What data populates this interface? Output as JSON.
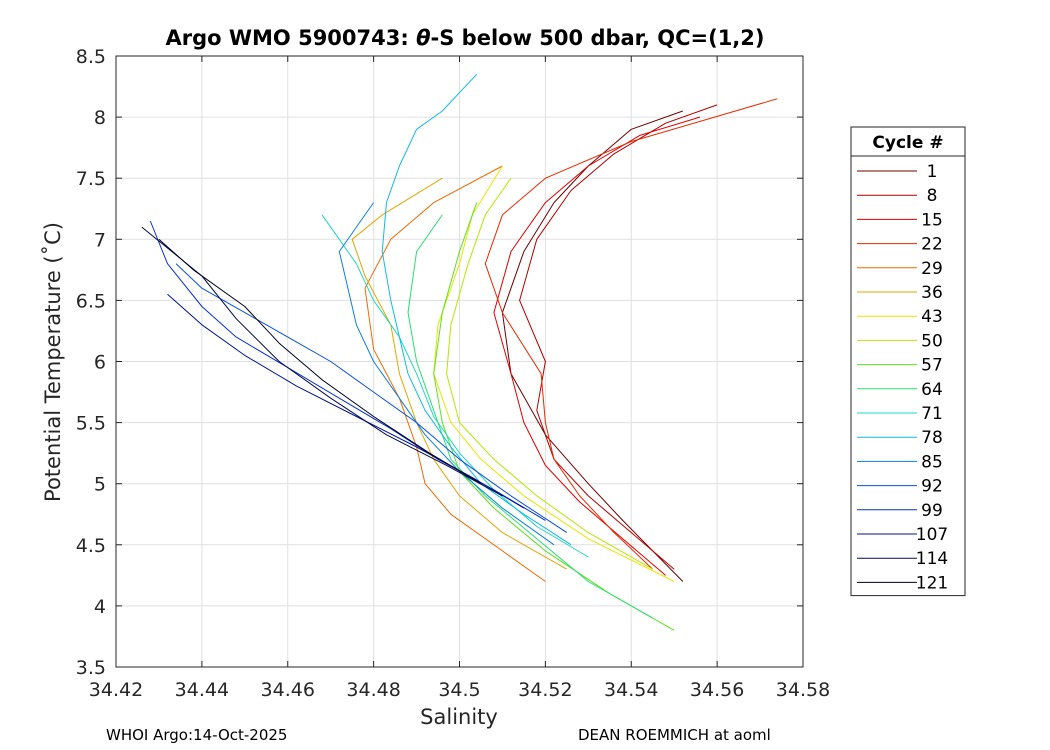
{
  "title": {
    "prefix": "Argo WMO 5900743: ",
    "theta": "θ",
    "suffix": "-S below 500 dbar,  QC=(1,2)"
  },
  "footer": {
    "left": "WHOI Argo:14-Oct-2025",
    "right": "DEAN ROEMMICH at aoml"
  },
  "colors": {
    "axis": "#262626",
    "grid": "#e0e0e0",
    "cycle_palette": [
      "#6e0000",
      "#b00000",
      "#e00000",
      "#e62a00",
      "#ec6a00",
      "#e2a600",
      "#e8e600",
      "#b4e600",
      "#5ee020",
      "#26e070",
      "#1fd8c0",
      "#12b8ea",
      "#0d7ee0",
      "#0a52d4",
      "#0832c8",
      "#04148c",
      "#050a50",
      "#000022"
    ]
  },
  "chart_data": {
    "type": "line",
    "title": "Argo WMO 5900743: θ-S below 500 dbar,  QC=(1,2)",
    "xlabel": "Salinity",
    "ylabel": "Potential Temperature (˚C)",
    "xlim": [
      34.42,
      34.58
    ],
    "ylim": [
      3.5,
      8.5
    ],
    "xticks": [
      34.42,
      34.44,
      34.46,
      34.48,
      34.5,
      34.52,
      34.54,
      34.56,
      34.58
    ],
    "xtick_labels": [
      "34.42",
      "34.44",
      "34.46",
      "34.48",
      "34.5",
      "34.52",
      "34.54",
      "34.56",
      "34.58"
    ],
    "yticks": [
      3.5,
      4,
      4.5,
      5,
      5.5,
      6,
      6.5,
      7,
      7.5,
      8,
      8.5
    ],
    "ytick_labels": [
      "3.5",
      "4",
      "4.5",
      "5",
      "5.5",
      "6",
      "6.5",
      "7",
      "7.5",
      "8",
      "8.5"
    ],
    "grid": true,
    "legend": {
      "title": "Cycle #",
      "position": "outside-right",
      "entries": [
        "1",
        "8",
        "15",
        "22",
        "29",
        "36",
        "43",
        "50",
        "57",
        "64",
        "71",
        "78",
        "85",
        "92",
        "99",
        "107",
        "114",
        "121"
      ]
    },
    "series": [
      {
        "name": "1",
        "x": [
          34.552,
          34.545,
          34.538,
          34.53,
          34.52,
          34.512,
          34.51,
          34.515,
          34.522,
          34.53,
          34.54,
          34.552
        ],
        "y": [
          4.2,
          4.45,
          4.7,
          5.0,
          5.4,
          5.9,
          6.4,
          6.9,
          7.3,
          7.6,
          7.9,
          8.05
        ]
      },
      {
        "name": "8",
        "x": [
          34.55,
          34.54,
          34.53,
          34.522,
          34.518,
          34.52,
          34.514,
          34.518,
          34.526,
          34.536,
          34.548,
          34.56
        ],
        "y": [
          4.3,
          4.6,
          4.9,
          5.2,
          5.6,
          6.0,
          6.5,
          7.0,
          7.4,
          7.7,
          7.95,
          8.1
        ]
      },
      {
        "name": "15",
        "x": [
          34.548,
          34.538,
          34.528,
          34.52,
          34.515,
          34.512,
          34.508,
          34.512,
          34.52,
          34.53,
          34.542,
          34.556
        ],
        "y": [
          4.25,
          4.55,
          4.85,
          5.15,
          5.5,
          5.9,
          6.4,
          6.9,
          7.3,
          7.6,
          7.85,
          8.0
        ]
      },
      {
        "name": "22",
        "x": [
          34.545,
          34.536,
          34.528,
          34.522,
          34.52,
          34.519,
          34.51,
          34.506,
          34.51,
          34.52,
          34.54,
          34.574
        ],
        "y": [
          4.3,
          4.6,
          4.9,
          5.2,
          5.5,
          5.9,
          6.4,
          6.8,
          7.2,
          7.5,
          7.8,
          8.15
        ]
      },
      {
        "name": "29",
        "x": [
          34.52,
          34.51,
          34.498,
          34.492,
          34.49,
          34.486,
          34.48,
          34.478,
          34.484,
          34.494,
          34.51
        ],
        "y": [
          4.2,
          4.45,
          4.75,
          5.0,
          5.3,
          5.7,
          6.1,
          6.6,
          7.0,
          7.3,
          7.6
        ]
      },
      {
        "name": "36",
        "x": [
          34.525,
          34.51,
          34.5,
          34.494,
          34.49,
          34.486,
          34.484,
          34.478,
          34.475,
          34.482,
          34.496
        ],
        "y": [
          4.3,
          4.6,
          4.9,
          5.2,
          5.5,
          5.9,
          6.3,
          6.7,
          7.0,
          7.2,
          7.5
        ]
      },
      {
        "name": "43",
        "x": [
          34.55,
          34.53,
          34.515,
          34.505,
          34.498,
          34.494,
          34.495,
          34.5,
          34.503,
          34.51
        ],
        "y": [
          4.2,
          4.55,
          4.9,
          5.2,
          5.5,
          5.9,
          6.3,
          6.8,
          7.2,
          7.6
        ]
      },
      {
        "name": "50",
        "x": [
          34.545,
          34.53,
          34.518,
          34.508,
          34.5,
          34.497,
          34.498,
          34.502,
          34.506,
          34.512
        ],
        "y": [
          4.3,
          4.6,
          4.9,
          5.2,
          5.5,
          5.9,
          6.3,
          6.8,
          7.2,
          7.5
        ]
      },
      {
        "name": "57",
        "x": [
          34.55,
          34.535,
          34.52,
          34.508,
          34.5,
          34.496,
          34.494,
          34.496,
          34.5,
          34.504
        ],
        "y": [
          3.8,
          4.1,
          4.45,
          4.8,
          5.1,
          5.5,
          5.9,
          6.4,
          6.9,
          7.3
        ]
      },
      {
        "name": "64",
        "x": [
          34.545,
          34.53,
          34.518,
          34.506,
          34.498,
          34.494,
          34.49,
          34.488,
          34.49,
          34.496
        ],
        "y": [
          3.9,
          4.2,
          4.55,
          4.9,
          5.2,
          5.6,
          6.0,
          6.4,
          6.9,
          7.2
        ]
      },
      {
        "name": "71",
        "x": [
          34.53,
          34.518,
          34.508,
          34.5,
          34.494,
          34.49,
          34.486,
          34.48,
          34.476,
          34.472,
          34.468
        ],
        "y": [
          4.4,
          4.65,
          4.95,
          5.25,
          5.55,
          5.9,
          6.2,
          6.5,
          6.8,
          7.0,
          7.2
        ]
      },
      {
        "name": "78",
        "x": [
          34.526,
          34.515,
          34.505,
          34.498,
          34.492,
          34.488,
          34.486,
          34.484,
          34.482,
          34.483,
          34.486,
          34.49,
          34.496,
          34.504
        ],
        "y": [
          4.5,
          4.75,
          5.0,
          5.3,
          5.6,
          5.9,
          6.2,
          6.5,
          6.9,
          7.3,
          7.6,
          7.9,
          8.05,
          8.35
        ]
      },
      {
        "name": "85",
        "x": [
          34.522,
          34.51,
          34.5,
          34.492,
          34.486,
          34.48,
          34.476,
          34.474,
          34.472,
          34.476,
          34.48
        ],
        "y": [
          4.5,
          4.8,
          5.1,
          5.4,
          5.7,
          6.0,
          6.3,
          6.6,
          6.9,
          7.1,
          7.3
        ]
      },
      {
        "name": "92",
        "x": [
          34.525,
          34.512,
          34.5,
          34.49,
          34.48,
          34.47,
          34.46,
          34.45,
          34.44,
          34.434
        ],
        "y": [
          4.6,
          4.9,
          5.2,
          5.5,
          5.75,
          6.0,
          6.2,
          6.4,
          6.6,
          6.8
        ]
      },
      {
        "name": "99",
        "x": [
          34.52,
          34.508,
          34.495,
          34.484,
          34.472,
          34.46,
          34.448,
          34.44,
          34.432,
          34.428
        ],
        "y": [
          4.7,
          4.95,
          5.2,
          5.45,
          5.7,
          5.95,
          6.2,
          6.45,
          6.8,
          7.15
        ]
      },
      {
        "name": "107",
        "x": [
          34.515,
          34.503,
          34.49,
          34.476,
          34.462,
          34.45,
          34.44,
          34.432
        ],
        "y": [
          4.8,
          5.05,
          5.3,
          5.55,
          5.8,
          6.05,
          6.3,
          6.55
        ]
      },
      {
        "name": "114",
        "x": [
          34.51,
          34.497,
          34.483,
          34.47,
          34.458,
          34.448,
          34.44,
          34.426
        ],
        "y": [
          4.9,
          5.15,
          5.4,
          5.7,
          6.0,
          6.35,
          6.7,
          7.1
        ]
      },
      {
        "name": "121",
        "x": [
          34.505,
          34.493,
          34.48,
          34.468,
          34.458,
          34.45,
          34.438,
          34.43
        ],
        "y": [
          5.0,
          5.25,
          5.55,
          5.85,
          6.15,
          6.45,
          6.75,
          7.0
        ]
      }
    ]
  }
}
